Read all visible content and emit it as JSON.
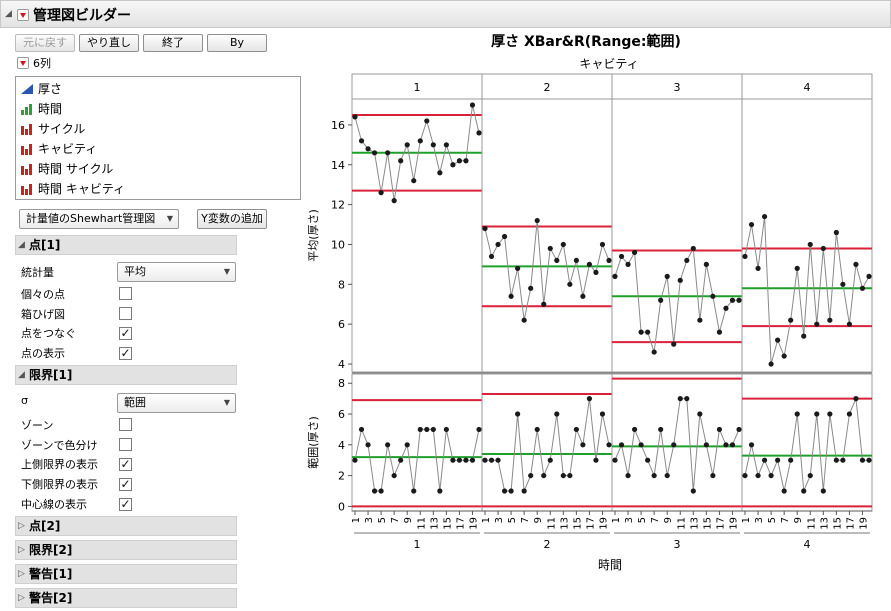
{
  "window": {
    "title": "管理図ビルダー"
  },
  "toolbar": {
    "undo": "元に戻す",
    "redo": "やり直し",
    "done": "終了",
    "by": "By"
  },
  "columns": {
    "header": "6列",
    "items": [
      {
        "label": "厚さ",
        "icon": "continuous-icon"
      },
      {
        "label": "時間",
        "icon": "ordinal-icon"
      },
      {
        "label": "サイクル",
        "icon": "nominal-icon"
      },
      {
        "label": "キャビティ",
        "icon": "nominal-icon"
      },
      {
        "label": "時間 サイクル",
        "icon": "nominal-icon"
      },
      {
        "label": "時間 キャビティ",
        "icon": "nominal-icon"
      }
    ]
  },
  "chart_type": {
    "value": "計量値のShewhart管理図",
    "add_y": "Y変数の追加"
  },
  "points1": {
    "title": "点[1]",
    "stat_label": "統計量",
    "stat_value": "平均",
    "rows": [
      {
        "label": "個々の点",
        "checked": false
      },
      {
        "label": "箱ひげ図",
        "checked": false
      },
      {
        "label": "点をつなぐ",
        "checked": true
      },
      {
        "label": "点の表示",
        "checked": true
      }
    ]
  },
  "limits1": {
    "title": "限界[1]",
    "sigma_label": "σ",
    "sigma_value": "範囲",
    "rows": [
      {
        "label": "ゾーン",
        "checked": false
      },
      {
        "label": "ゾーンで色分け",
        "checked": false
      },
      {
        "label": "上側限界の表示",
        "checked": true
      },
      {
        "label": "下側限界の表示",
        "checked": true
      },
      {
        "label": "中心線の表示",
        "checked": true
      }
    ]
  },
  "collapsed_sections": [
    "点[2]",
    "限界[2]",
    "警告[1]",
    "警告[2]"
  ],
  "colors": {
    "limit": "#d9213a",
    "center": "#1fa02a",
    "line": "#8a8a8a",
    "point": "#1a1a1a"
  },
  "chart_data": {
    "type": "line",
    "title": "厚さ  XBar&R(Range:範囲)",
    "phase_label": "キャビティ",
    "xlabel": "時間",
    "phases": [
      "1",
      "2",
      "3",
      "4"
    ],
    "x_ticks": [
      "1",
      "3",
      "5",
      "7",
      "9",
      "11",
      "13",
      "15",
      "17",
      "19"
    ],
    "xbar": {
      "ylabel": "平均(厚さ)",
      "ylim": [
        3.6,
        17.3
      ],
      "yticks": [
        4,
        6,
        8,
        10,
        12,
        14,
        16
      ],
      "series": [
        {
          "phase": "1",
          "ucl": 16.5,
          "cl": 14.6,
          "lcl": 12.7,
          "values": [
            16.4,
            15.2,
            14.8,
            14.6,
            12.6,
            14.6,
            12.2,
            14.2,
            15.0,
            13.2,
            15.2,
            16.2,
            15.0,
            13.6,
            15.0,
            14.0,
            14.2,
            14.2,
            17.0,
            15.6
          ]
        },
        {
          "phase": "2",
          "ucl": 10.9,
          "cl": 8.9,
          "lcl": 6.9,
          "values": [
            10.8,
            9.4,
            10.0,
            10.4,
            7.4,
            8.8,
            6.2,
            7.8,
            11.2,
            7.0,
            9.8,
            9.2,
            10.0,
            8.0,
            9.2,
            7.4,
            9.0,
            8.6,
            10.0,
            9.2
          ]
        },
        {
          "phase": "3",
          "ucl": 9.7,
          "cl": 7.4,
          "lcl": 5.1,
          "values": [
            8.4,
            9.4,
            9.0,
            9.6,
            5.6,
            5.6,
            4.6,
            7.2,
            8.4,
            5.0,
            8.2,
            9.2,
            9.8,
            6.2,
            9.0,
            7.4,
            5.6,
            6.8,
            7.2,
            7.2
          ]
        },
        {
          "phase": "4",
          "ucl": 9.8,
          "cl": 7.8,
          "lcl": 5.9,
          "values": [
            9.4,
            11.0,
            8.8,
            11.4,
            4.0,
            5.2,
            4.4,
            6.2,
            8.8,
            5.4,
            10.0,
            6.0,
            9.8,
            6.2,
            10.6,
            8.0,
            6.0,
            9.0,
            7.8,
            8.4
          ]
        }
      ]
    },
    "range": {
      "ylabel": "範囲(厚さ)",
      "ylim": [
        -0.3,
        8.6
      ],
      "yticks": [
        0,
        2,
        4,
        6,
        8
      ],
      "series": [
        {
          "phase": "1",
          "ucl": 6.9,
          "cl": 3.2,
          "lcl": 0,
          "values": [
            3,
            5,
            4,
            1,
            1,
            4,
            2,
            3,
            4,
            1,
            5,
            5,
            5,
            1,
            5,
            3,
            3,
            3,
            3,
            5
          ]
        },
        {
          "phase": "2",
          "ucl": 7.3,
          "cl": 3.4,
          "lcl": 0,
          "values": [
            3,
            3,
            3,
            1,
            1,
            6,
            1,
            2,
            5,
            2,
            3,
            6,
            2,
            2,
            5,
            4,
            7,
            3,
            6,
            4
          ]
        },
        {
          "phase": "3",
          "ucl": 8.3,
          "cl": 3.9,
          "lcl": 0,
          "values": [
            3,
            4,
            2,
            5,
            4,
            3,
            2,
            5,
            2,
            4,
            7,
            7,
            1,
            6,
            4,
            2,
            5,
            4,
            4,
            5
          ]
        },
        {
          "phase": "4",
          "ucl": 7.0,
          "cl": 3.3,
          "lcl": 0,
          "values": [
            2,
            4,
            2,
            3,
            2,
            3,
            1,
            3,
            6,
            1,
            2,
            6,
            1,
            6,
            3,
            3,
            6,
            7,
            3,
            3
          ]
        }
      ]
    }
  }
}
